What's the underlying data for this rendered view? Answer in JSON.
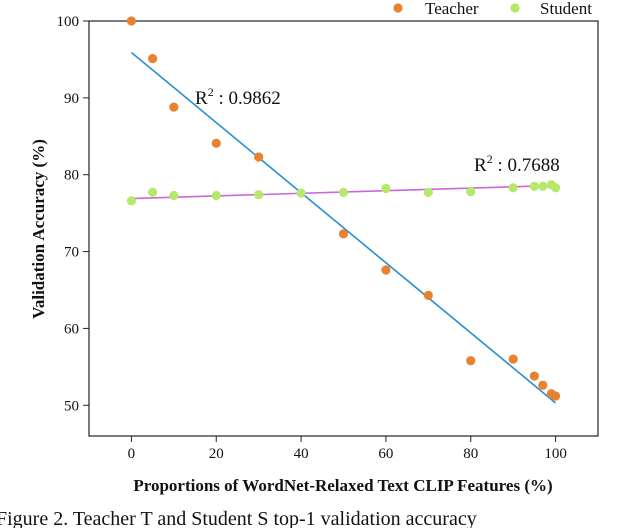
{
  "chart_data": {
    "type": "scatter",
    "xlabel": "Proportions of WordNet-Relaxed Text CLIP Features (%)",
    "ylabel": "Validation Accuracy (%)",
    "xlim": [
      -10,
      110
    ],
    "ylim": [
      46,
      100
    ],
    "xticks": [
      "0",
      "20",
      "40",
      "60",
      "80",
      "100"
    ],
    "yticks": [
      "50",
      "60",
      "70",
      "80",
      "90",
      "100"
    ],
    "legend_position": "top-right",
    "series": [
      {
        "name": "Teacher",
        "color": "#e8822e",
        "points": [
          {
            "x": 0,
            "y": 100
          },
          {
            "x": 5,
            "y": 95.1
          },
          {
            "x": 10,
            "y": 88.8
          },
          {
            "x": 20,
            "y": 84.1
          },
          {
            "x": 30,
            "y": 82.3
          },
          {
            "x": 50,
            "y": 72.3
          },
          {
            "x": 60,
            "y": 67.6
          },
          {
            "x": 70,
            "y": 64.3
          },
          {
            "x": 80,
            "y": 55.8
          },
          {
            "x": 90,
            "y": 56.0
          },
          {
            "x": 95,
            "y": 53.8
          },
          {
            "x": 97,
            "y": 52.6
          },
          {
            "x": 99,
            "y": 51.5
          },
          {
            "x": 100,
            "y": 51.2
          }
        ],
        "fit": {
          "x0": 0,
          "y0": 95.9,
          "x1": 100,
          "y1": 50.3,
          "color": "#2a8fd0",
          "label": "R",
          "sup": "2",
          "value": ": 0.9862"
        }
      },
      {
        "name": "Student",
        "color": "#b5e86b",
        "points": [
          {
            "x": 0,
            "y": 76.6
          },
          {
            "x": 5,
            "y": 77.7
          },
          {
            "x": 10,
            "y": 77.3
          },
          {
            "x": 20,
            "y": 77.3
          },
          {
            "x": 30,
            "y": 77.4
          },
          {
            "x": 40,
            "y": 77.6
          },
          {
            "x": 50,
            "y": 77.7
          },
          {
            "x": 60,
            "y": 78.2
          },
          {
            "x": 70,
            "y": 77.7
          },
          {
            "x": 80,
            "y": 77.8
          },
          {
            "x": 90,
            "y": 78.3
          },
          {
            "x": 95,
            "y": 78.5
          },
          {
            "x": 97,
            "y": 78.5
          },
          {
            "x": 99,
            "y": 78.7
          },
          {
            "x": 100,
            "y": 78.3
          }
        ],
        "fit": {
          "x0": 0,
          "y0": 76.9,
          "x1": 100,
          "y1": 78.6,
          "color": "#cc66dd",
          "label": "R",
          "sup": "2",
          "value": ": 0.7688"
        }
      }
    ]
  },
  "caption": "Figure 2.  Teacher T  and Student S  top-1 validation accuracy"
}
